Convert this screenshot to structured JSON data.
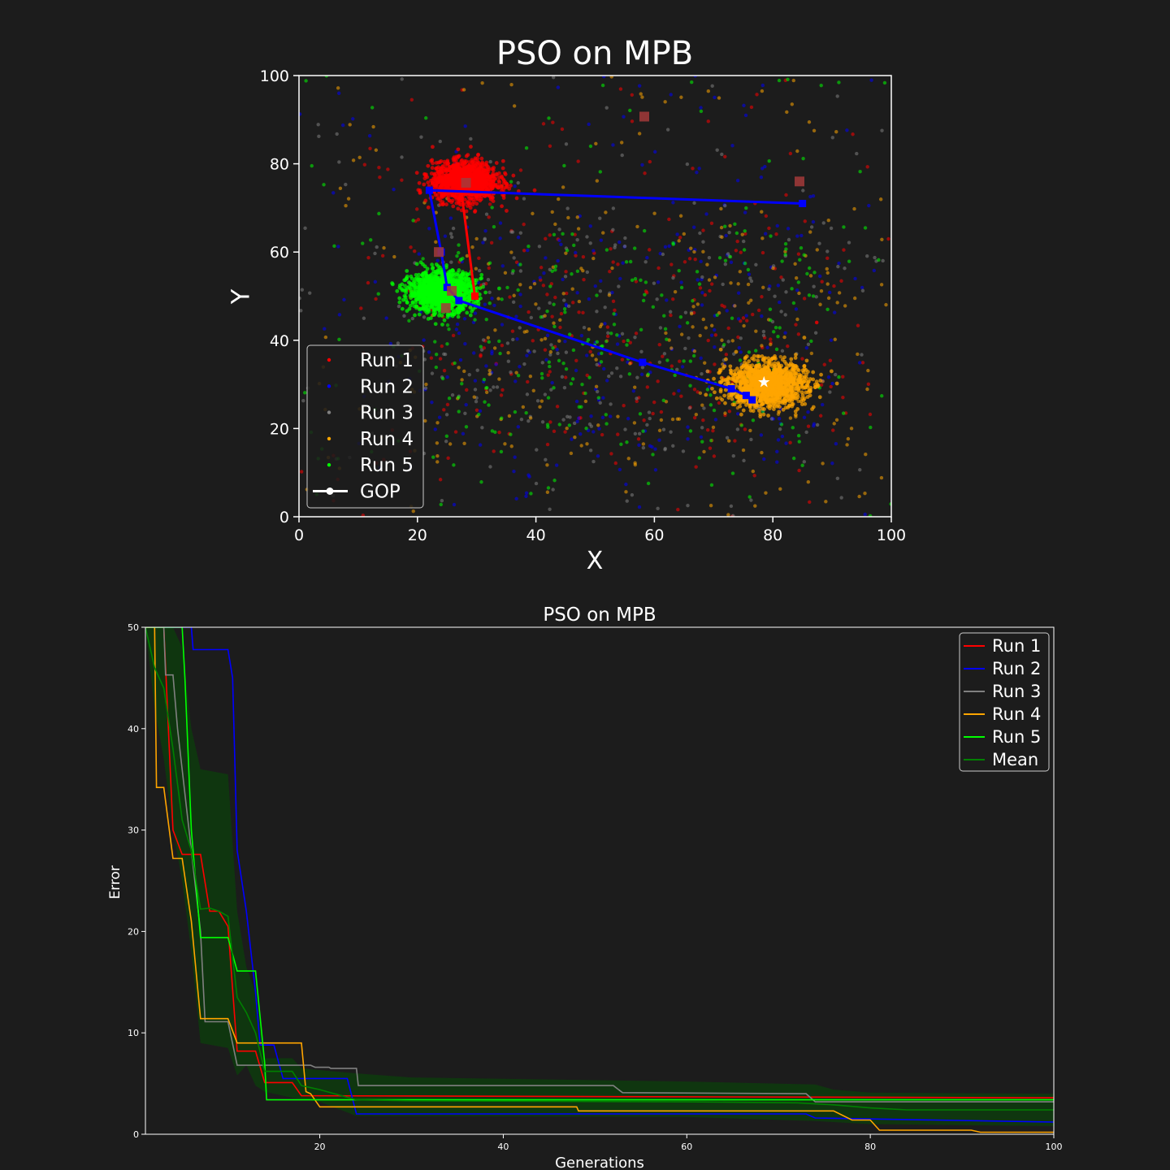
{
  "chart_data": [
    {
      "type": "scatter",
      "title": "PSO on MPB",
      "xlabel": "X",
      "ylabel": "Y",
      "xlim": [
        0,
        100
      ],
      "ylim": [
        0,
        100
      ],
      "xticks": [
        0,
        20,
        40,
        60,
        80,
        100
      ],
      "yticks": [
        0,
        20,
        40,
        60,
        80,
        100
      ],
      "legend_position": "lower-left",
      "legend": [
        {
          "label": "Run 1",
          "color": "#ff0000",
          "marker": "dot"
        },
        {
          "label": "Run 2",
          "color": "#0000ff",
          "marker": "dot"
        },
        {
          "label": "Run 3",
          "color": "#808080",
          "marker": "dot"
        },
        {
          "label": "Run 4",
          "color": "#ffa500",
          "marker": "dot"
        },
        {
          "label": "Run 5",
          "color": "#00ff00",
          "marker": "dot"
        },
        {
          "label": "GOP",
          "color": "#ffffff",
          "marker": "star-line"
        }
      ],
      "clusters": [
        {
          "series": "Run 1",
          "color": "#ff0000",
          "center": [
            28,
            76
          ],
          "spread": [
            5,
            4
          ]
        },
        {
          "series": "Run 5",
          "color": "#00ff00",
          "center": [
            24,
            51
          ],
          "spread": [
            5,
            4
          ]
        },
        {
          "series": "Run 4",
          "color": "#ffa500",
          "center": [
            79,
            30
          ],
          "spread": [
            6,
            4.5
          ]
        }
      ],
      "gop_path": [
        {
          "series": "Run 1",
          "color": "#ff0000",
          "points": [
            [
              27,
              78
            ],
            [
              29.7,
              50
            ]
          ]
        },
        {
          "series": "Run 2",
          "color": "#0000ff",
          "points": [
            [
              85,
              71
            ],
            [
              22,
              74
            ],
            [
              24,
              60
            ],
            [
              25,
              52
            ],
            [
              27,
              49
            ],
            [
              58,
              35
            ],
            [
              73,
              29
            ],
            [
              75.5,
              27.5
            ],
            [
              76.5,
              26.5
            ]
          ]
        }
      ],
      "square_markers": [
        [
          58.3,
          90.7
        ],
        [
          84.5,
          76
        ],
        [
          28.2,
          75.7
        ],
        [
          25.8,
          51.2
        ],
        [
          23.6,
          60
        ],
        [
          24.8,
          47.3
        ]
      ],
      "gop_star": [
        78.5,
        30.5
      ],
      "background_points_per_run": 300
    },
    {
      "type": "line",
      "title": "PSO on MPB",
      "xlabel": "Generations",
      "ylabel": "Error",
      "xlim": [
        1,
        100
      ],
      "ylim": [
        0,
        50
      ],
      "xticks": [
        20,
        40,
        60,
        80,
        100
      ],
      "yticks": [
        0,
        10,
        20,
        30,
        40,
        50
      ],
      "legend_position": "top-right",
      "series": [
        {
          "name": "Run 1",
          "color": "#ff0000",
          "points": [
            [
              1,
              50
            ],
            [
              3,
              50
            ],
            [
              4,
              30
            ],
            [
              5,
              27.6
            ],
            [
              7,
              27.6
            ],
            [
              8,
              22
            ],
            [
              9,
              22
            ],
            [
              10,
              20.5
            ],
            [
              11,
              8.2
            ],
            [
              13,
              8.2
            ],
            [
              14,
              5.1
            ],
            [
              17,
              5.1
            ],
            [
              18,
              3.8
            ],
            [
              100,
              3.6
            ]
          ]
        },
        {
          "name": "Run 2",
          "color": "#0000ff",
          "points": [
            [
              1,
              50
            ],
            [
              6,
              50
            ],
            [
              6.2,
              47.8
            ],
            [
              10,
              47.8
            ],
            [
              10.5,
              45
            ],
            [
              11,
              28
            ],
            [
              12,
              22
            ],
            [
              13,
              14
            ],
            [
              13.5,
              8.8
            ],
            [
              15,
              8.8
            ],
            [
              16,
              5.5
            ],
            [
              23,
              5.5
            ],
            [
              24,
              2
            ],
            [
              73,
              2
            ],
            [
              74,
              1.6
            ],
            [
              100,
              1.2
            ]
          ]
        },
        {
          "name": "Run 3",
          "color": "#808080",
          "points": [
            [
              1,
              50
            ],
            [
              3,
              50
            ],
            [
              3.2,
              45.3
            ],
            [
              4,
              45.3
            ],
            [
              4.5,
              40
            ],
            [
              6,
              28
            ],
            [
              7,
              20
            ],
            [
              7.5,
              11.1
            ],
            [
              10,
              11.1
            ],
            [
              11,
              6.8
            ],
            [
              19,
              6.8
            ],
            [
              19.5,
              6.6
            ],
            [
              21,
              6.6
            ],
            [
              21.2,
              6.5
            ],
            [
              24,
              6.5
            ],
            [
              24.2,
              4.8
            ],
            [
              52,
              4.8
            ],
            [
              53,
              4.1
            ],
            [
              73,
              4
            ],
            [
              74,
              3.2
            ],
            [
              100,
              3.2
            ]
          ]
        },
        {
          "name": "Run 4",
          "color": "#ffa500",
          "points": [
            [
              1,
              50
            ],
            [
              2,
              50
            ],
            [
              2.2,
              34.2
            ],
            [
              3,
              34.2
            ],
            [
              4,
              27.2
            ],
            [
              5,
              27.2
            ],
            [
              6,
              21
            ],
            [
              7,
              11.4
            ],
            [
              10,
              11.4
            ],
            [
              11,
              9
            ],
            [
              18,
              9
            ],
            [
              18.5,
              4.2
            ],
            [
              19,
              4
            ],
            [
              20,
              2.7
            ],
            [
              48,
              2.7
            ],
            [
              48.2,
              2.3
            ],
            [
              76,
              2.3
            ],
            [
              78,
              1.4
            ],
            [
              80,
              1.4
            ],
            [
              81,
              0.4
            ],
            [
              91,
              0.4
            ],
            [
              92,
              0.2
            ],
            [
              100,
              0.2
            ]
          ]
        },
        {
          "name": "Run 5",
          "color": "#00ff00",
          "points": [
            [
              1,
              50
            ],
            [
              5,
              50
            ],
            [
              5.3,
              45
            ],
            [
              6,
              30
            ],
            [
              7,
              19.4
            ],
            [
              10,
              19.4
            ],
            [
              11,
              16.1
            ],
            [
              13,
              16.1
            ],
            [
              14,
              7
            ],
            [
              14.2,
              3.4
            ],
            [
              100,
              3.4
            ]
          ]
        },
        {
          "name": "Mean",
          "color": "#008000",
          "points": [
            [
              1,
              50
            ],
            [
              2,
              46
            ],
            [
              3,
              44
            ],
            [
              4,
              38
            ],
            [
              5,
              31
            ],
            [
              6,
              28
            ],
            [
              7,
              22.2
            ],
            [
              8,
              22.3
            ],
            [
              9,
              22
            ],
            [
              10,
              21.5
            ],
            [
              11,
              13.5
            ],
            [
              12,
              12
            ],
            [
              13,
              10
            ],
            [
              14,
              6.2
            ],
            [
              17,
              6.2
            ],
            [
              18,
              4.8
            ],
            [
              20,
              4.4
            ],
            [
              24,
              3.4
            ],
            [
              30,
              3.3
            ],
            [
              60,
              3.2
            ],
            [
              72,
              3.1
            ],
            [
              76,
              2.9
            ],
            [
              80,
              2.6
            ],
            [
              84,
              2.4
            ],
            [
              100,
              2.4
            ]
          ]
        }
      ],
      "band": {
        "color": "#0e3a0e",
        "upper": [
          [
            1,
            50
          ],
          [
            4,
            50
          ],
          [
            5,
            48
          ],
          [
            6,
            40
          ],
          [
            7,
            36
          ],
          [
            10,
            35.5
          ],
          [
            11,
            22
          ],
          [
            12,
            16.5
          ],
          [
            13,
            14
          ],
          [
            14,
            7.5
          ],
          [
            17,
            7.5
          ],
          [
            18,
            6.5
          ],
          [
            24,
            6
          ],
          [
            30,
            5.6
          ],
          [
            60,
            5.2
          ],
          [
            74,
            4.9
          ],
          [
            76,
            4.4
          ],
          [
            80,
            4.1
          ],
          [
            100,
            4
          ]
        ],
        "lower": [
          [
            1,
            50
          ],
          [
            2,
            42
          ],
          [
            3,
            37
          ],
          [
            4,
            30
          ],
          [
            5,
            25
          ],
          [
            6,
            18
          ],
          [
            7,
            9
          ],
          [
            10,
            8.5
          ],
          [
            11,
            5.8
          ],
          [
            12,
            6.8
          ],
          [
            13,
            4.8
          ],
          [
            14,
            4.2
          ],
          [
            17,
            3.6
          ],
          [
            20,
            3.2
          ],
          [
            24,
            1.8
          ],
          [
            60,
            1.7
          ],
          [
            74,
            1.3
          ],
          [
            80,
            1
          ],
          [
            100,
            0.8
          ]
        ]
      }
    }
  ]
}
